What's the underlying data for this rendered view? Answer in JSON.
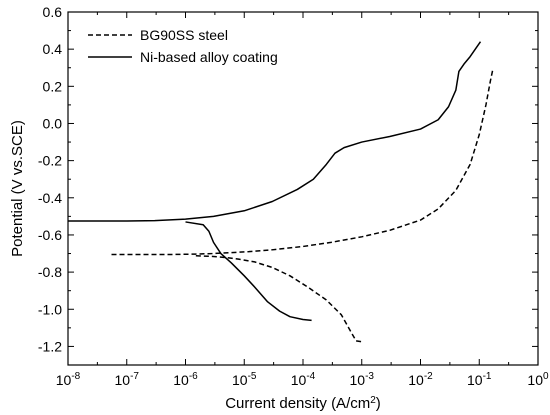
{
  "chart_data": {
    "type": "line",
    "xlabel": "Current density (A/cm",
    "xlabel_sup": "2",
    "xlabel_end": ")",
    "ylabel": "Potential (V vs.SCE)",
    "x_scale": "log",
    "xlim": [
      1e-08,
      1
    ],
    "ylim": [
      -1.3,
      0.6
    ],
    "x_ticks": [
      1e-08,
      1e-07,
      1e-06,
      1e-05,
      0.0001,
      0.001,
      0.01,
      0.1,
      1
    ],
    "x_tick_labels": [
      {
        "base": "10",
        "exp": "-8"
      },
      {
        "base": "10",
        "exp": "-7"
      },
      {
        "base": "10",
        "exp": "-6"
      },
      {
        "base": "10",
        "exp": "-5"
      },
      {
        "base": "10",
        "exp": "-4"
      },
      {
        "base": "10",
        "exp": "-3"
      },
      {
        "base": "10",
        "exp": "-2"
      },
      {
        "base": "10",
        "exp": "-1"
      },
      {
        "base": "10",
        "exp": "0"
      }
    ],
    "y_ticks": [
      -1.2,
      -1.0,
      -0.8,
      -0.6,
      -0.4,
      -0.2,
      0.0,
      0.2,
      0.4,
      0.6
    ],
    "y_tick_labels": [
      "-1.2",
      "-1.0",
      "-0.8",
      "-0.6",
      "-0.4",
      "-0.2",
      "0.0",
      "0.2",
      "0.4",
      "0.6"
    ],
    "grid": false,
    "legend_position": "top-left",
    "series": [
      {
        "name": "BG90SS steel",
        "style": "dashed",
        "color": "#000000",
        "points": [
          [
            5.5e-08,
            -0.705
          ],
          [
            2e-07,
            -0.705
          ],
          [
            6e-07,
            -0.705
          ],
          [
            1.5e-06,
            -0.703
          ],
          [
            3e-06,
            -0.7
          ],
          [
            6e-06,
            -0.695
          ],
          [
            1.2e-05,
            -0.69
          ],
          [
            3e-05,
            -0.68
          ],
          [
            0.0001,
            -0.662
          ],
          [
            0.0003,
            -0.64
          ],
          [
            0.001,
            -0.61
          ],
          [
            0.003,
            -0.575
          ],
          [
            0.01,
            -0.52
          ],
          [
            0.02,
            -0.46
          ],
          [
            0.04,
            -0.36
          ],
          [
            0.07,
            -0.22
          ],
          [
            0.1,
            -0.06
          ],
          [
            0.13,
            0.1
          ],
          [
            0.155,
            0.23
          ],
          [
            0.17,
            0.29
          ]
        ]
      },
      {
        "name": "BG90SS steel",
        "style": "dashed",
        "color": "#000000",
        "points": [
          [
            1.5e-06,
            -0.712
          ],
          [
            3e-06,
            -0.716
          ],
          [
            5e-06,
            -0.722
          ],
          [
            8e-06,
            -0.73
          ],
          [
            1.5e-05,
            -0.745
          ],
          [
            3e-05,
            -0.775
          ],
          [
            6e-05,
            -0.82
          ],
          [
            0.00012,
            -0.88
          ],
          [
            0.00025,
            -0.95
          ],
          [
            0.00045,
            -1.03
          ],
          [
            0.00065,
            -1.12
          ],
          [
            0.0008,
            -1.17
          ],
          [
            0.001,
            -1.175
          ]
        ]
      },
      {
        "name": "Ni-based alloy coating",
        "style": "solid",
        "color": "#000000",
        "points": [
          [
            1e-08,
            -0.525
          ],
          [
            1e-07,
            -0.525
          ],
          [
            3e-07,
            -0.523
          ],
          [
            1e-06,
            -0.515
          ],
          [
            3e-06,
            -0.5
          ],
          [
            1e-05,
            -0.47
          ],
          [
            3e-05,
            -0.42
          ],
          [
            8e-05,
            -0.355
          ],
          [
            0.00015,
            -0.3
          ],
          [
            0.00025,
            -0.22
          ],
          [
            0.00035,
            -0.16
          ],
          [
            0.0005,
            -0.13
          ],
          [
            0.001,
            -0.1
          ],
          [
            0.003,
            -0.07
          ],
          [
            0.01,
            -0.03
          ],
          [
            0.02,
            0.02
          ],
          [
            0.03,
            0.09
          ],
          [
            0.04,
            0.18
          ],
          [
            0.045,
            0.28
          ],
          [
            0.055,
            0.32
          ],
          [
            0.07,
            0.36
          ],
          [
            0.09,
            0.41
          ],
          [
            0.105,
            0.44
          ]
        ]
      },
      {
        "name": "Ni-based alloy coating",
        "style": "solid",
        "color": "#000000",
        "points": [
          [
            1e-06,
            -0.53
          ],
          [
            2e-06,
            -0.545
          ],
          [
            2.5e-06,
            -0.58
          ],
          [
            3e-06,
            -0.64
          ],
          [
            4e-06,
            -0.7
          ],
          [
            6e-06,
            -0.75
          ],
          [
            1e-05,
            -0.82
          ],
          [
            1.5e-05,
            -0.88
          ],
          [
            2.5e-05,
            -0.96
          ],
          [
            4e-05,
            -1.01
          ],
          [
            6e-05,
            -1.04
          ],
          [
            0.0001,
            -1.055
          ],
          [
            0.00014,
            -1.06
          ]
        ]
      }
    ],
    "legend": [
      {
        "label": "BG90SS steel",
        "style": "dashed"
      },
      {
        "label": "Ni-based alloy coating",
        "style": "solid"
      }
    ]
  }
}
